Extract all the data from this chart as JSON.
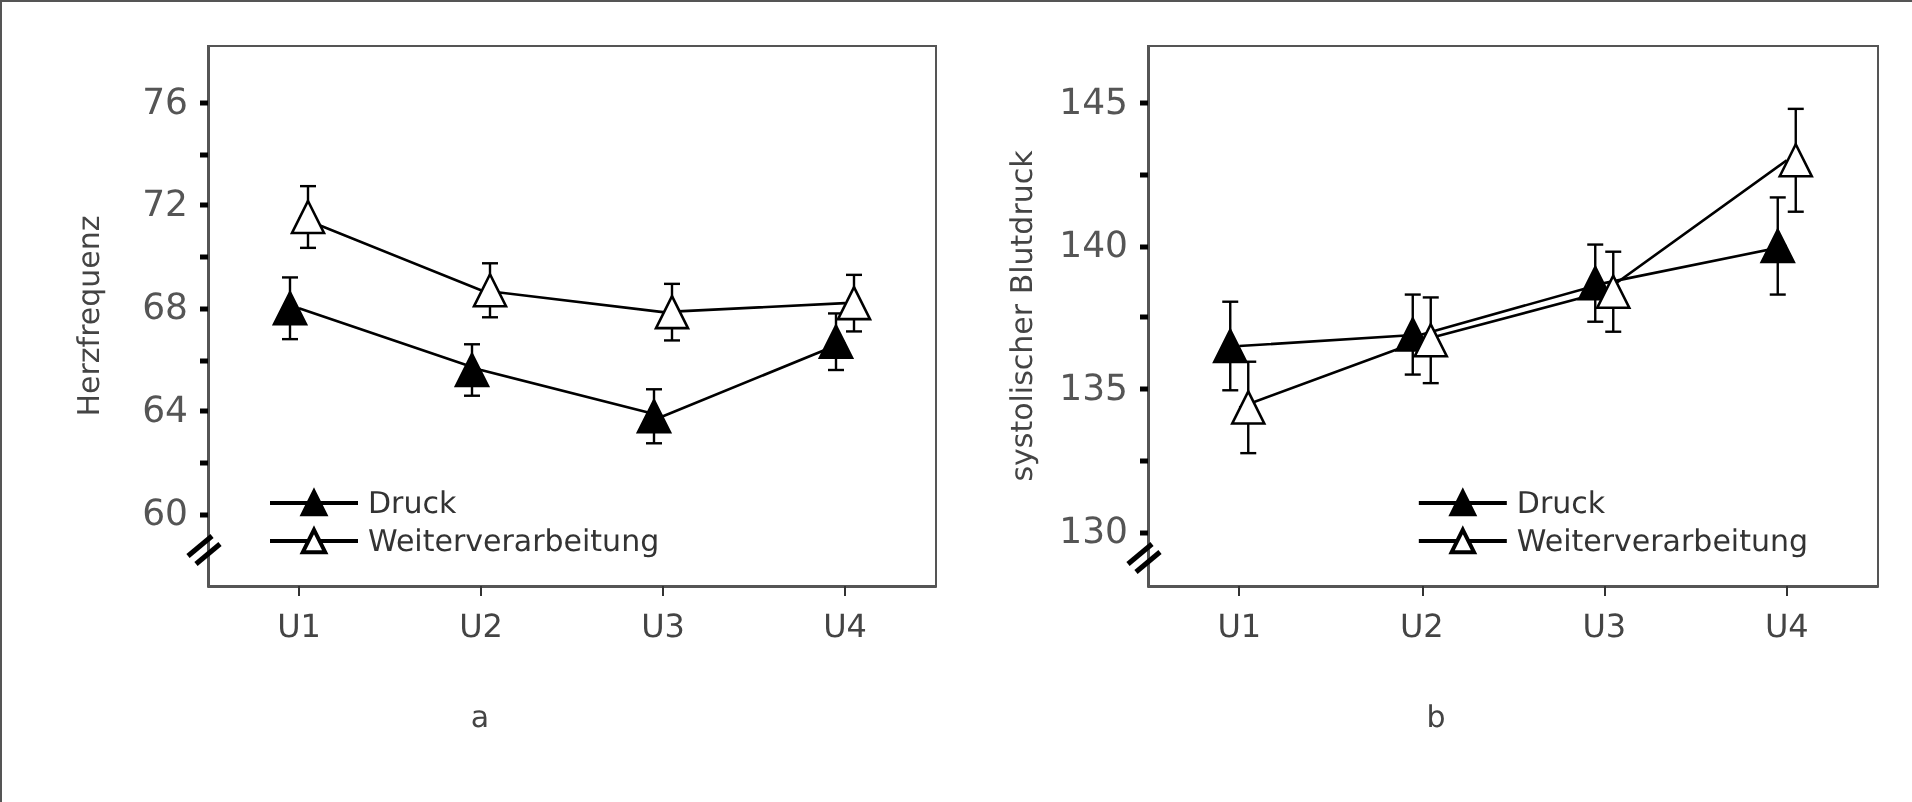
{
  "chart_data": [
    {
      "type": "line",
      "ylabel": "Herzfrequenz",
      "annotations": [
        "a"
      ],
      "categories": [
        "U1",
        "U2",
        "U3",
        "U4"
      ],
      "series": [
        {
          "name": "Druck",
          "color": "#000000",
          "values": [
            68.0,
            65.6,
            63.8,
            66.7
          ],
          "errors": [
            1.2,
            1.0,
            1.05,
            1.1
          ]
        },
        {
          "name": "Weiterverarbeitung",
          "color": "#ffffff",
          "values": [
            71.55,
            68.7,
            67.85,
            68.2
          ],
          "errors": [
            1.2,
            1.05,
            1.1,
            1.1
          ]
        }
      ],
      "ylim": [
        57.2,
        78.2
      ],
      "yticks": [
        60,
        {
          "value": 62,
          "label": null
        },
        64,
        {
          "value": 66,
          "label": null
        },
        68,
        {
          "value": 70,
          "label": null
        },
        72,
        {
          "value": 74,
          "label": null
        },
        76
      ],
      "marker": "triangle",
      "line_style": "solid",
      "legend": "bottom left",
      "grid": false
    },
    {
      "type": "line",
      "ylabel": "systolischer Blutdruck",
      "annotations": [
        "b"
      ],
      "categories": [
        "U1",
        "U2",
        "U3",
        "U4"
      ],
      "series": [
        {
          "name": "Druck",
          "color": "#000000",
          "values": [
            136.5,
            136.9,
            138.7,
            140.0
          ],
          "errors": [
            1.55,
            1.4,
            1.35,
            1.7
          ]
        },
        {
          "name": "Weiterverarbeitung",
          "color": "#ffffff",
          "values": [
            134.35,
            136.7,
            138.4,
            143.0
          ],
          "errors": [
            1.6,
            1.5,
            1.4,
            1.8
          ]
        }
      ],
      "ylim": [
        128.1,
        147.0
      ],
      "yticks": [
        130,
        {
          "value": 132.5,
          "label": null
        },
        135,
        {
          "value": 137.5,
          "label": null
        },
        140,
        {
          "value": 142.5,
          "label": null
        },
        145
      ],
      "marker": "triangle",
      "line_style": "solid",
      "legend": "bottom right",
      "grid": false
    }
  ]
}
